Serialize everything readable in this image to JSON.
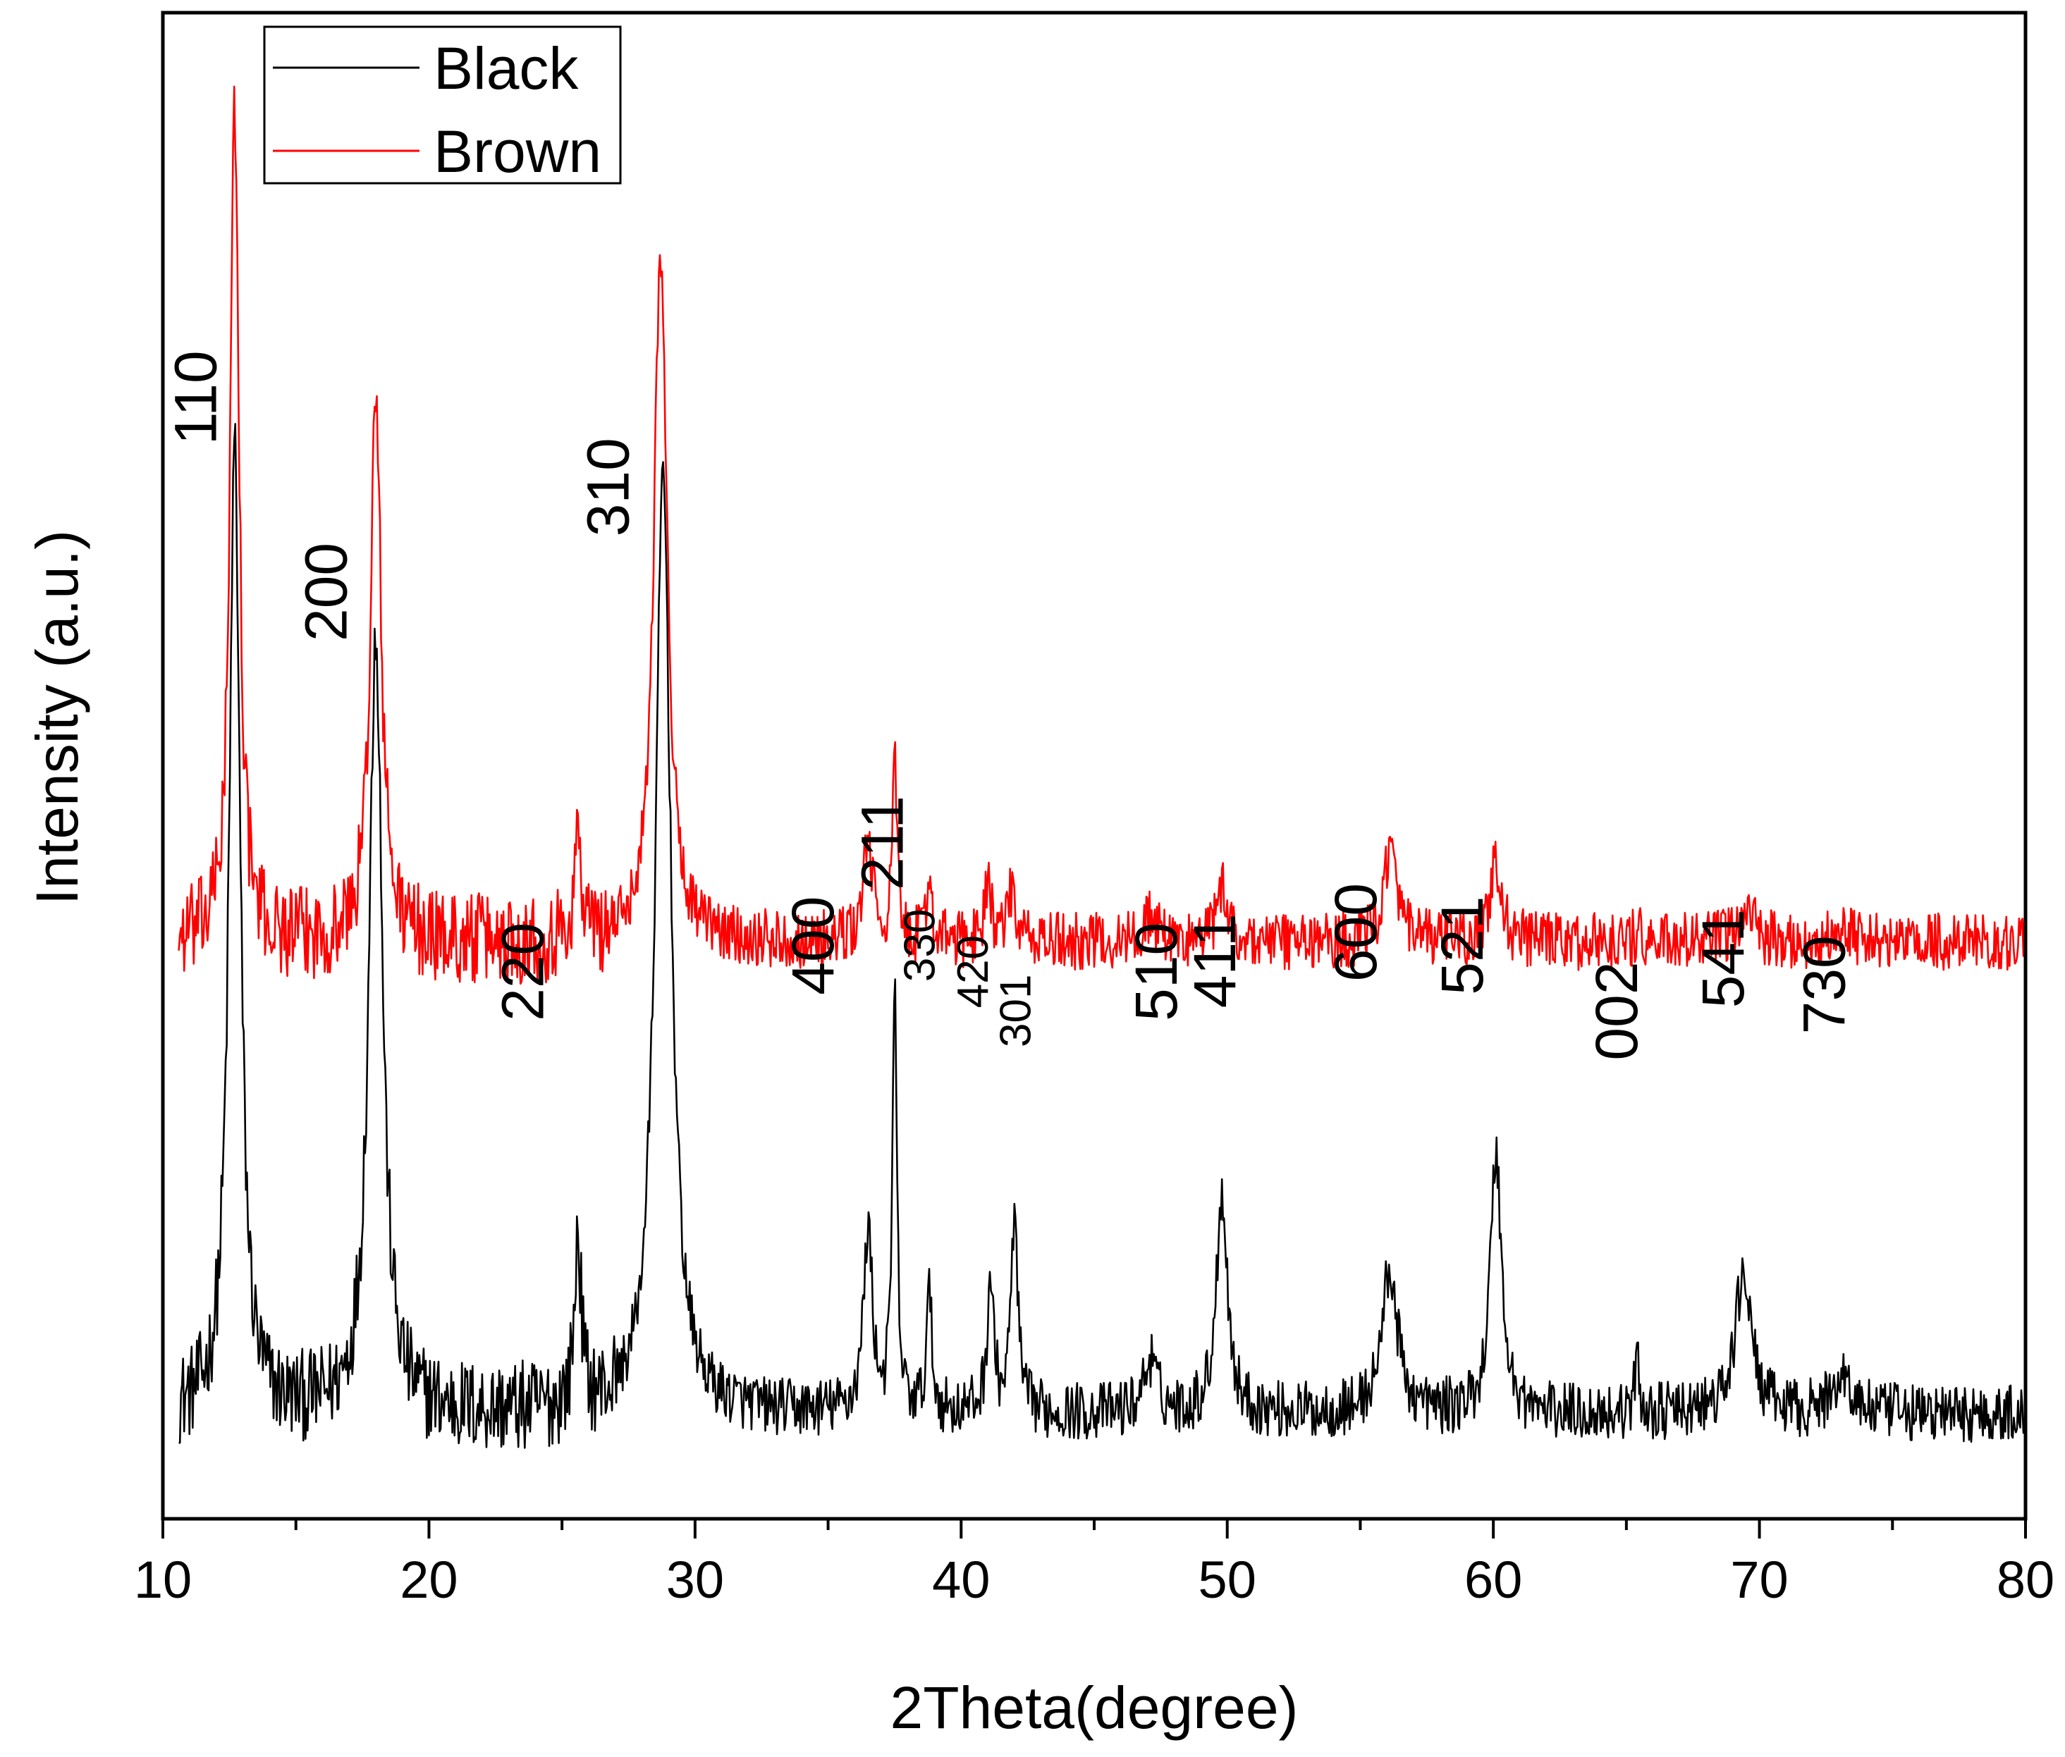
{
  "chart_data": {
    "type": "line",
    "title": "",
    "xlabel": "2Theta(degree)",
    "ylabel": "Intensity (a.u.)",
    "xlim": [
      10,
      80
    ],
    "ylim": [
      0,
      115
    ],
    "x_ticks": [
      10,
      20,
      30,
      40,
      50,
      60,
      70,
      80
    ],
    "x_minor_step": 5,
    "y_ticks_shown": false,
    "grid": false,
    "legend_position": "top-left",
    "series": [
      {
        "name": "Black",
        "color": "#000000",
        "baseline": 8,
        "noise": 2.2,
        "peaks": [
          {
            "x": 12.7,
            "height": 74,
            "width": 0.25
          },
          {
            "x": 18.0,
            "height": 60,
            "width": 0.3
          },
          {
            "x": 25.6,
            "height": 13,
            "width": 0.15
          },
          {
            "x": 28.8,
            "height": 72,
            "width": 0.35
          },
          {
            "x": 36.5,
            "height": 14,
            "width": 0.2
          },
          {
            "x": 37.5,
            "height": 32,
            "width": 0.1
          },
          {
            "x": 38.8,
            "height": 9,
            "width": 0.12
          },
          {
            "x": 41.1,
            "height": 10,
            "width": 0.15
          },
          {
            "x": 42.0,
            "height": 15,
            "width": 0.15
          },
          {
            "x": 47.1,
            "height": 4,
            "width": 0.3
          },
          {
            "x": 49.8,
            "height": 17,
            "width": 0.25
          },
          {
            "x": 56.1,
            "height": 11,
            "width": 0.35
          },
          {
            "x": 60.1,
            "height": 20,
            "width": 0.25
          },
          {
            "x": 65.4,
            "height": 4,
            "width": 0.1
          },
          {
            "x": 69.4,
            "height": 11,
            "width": 0.35
          },
          {
            "x": 73.1,
            "height": 3,
            "width": 0.4
          }
        ]
      },
      {
        "name": "Brown",
        "color": "#ff0000",
        "baseline": 44,
        "noise": 2.2,
        "peaks": [
          {
            "x": 12.7,
            "height": 64,
            "width": 0.2
          },
          {
            "x": 18.0,
            "height": 41,
            "width": 0.25
          },
          {
            "x": 25.6,
            "height": 8,
            "width": 0.15
          },
          {
            "x": 28.7,
            "height": 53,
            "width": 0.3
          },
          {
            "x": 36.5,
            "height": 8,
            "width": 0.2
          },
          {
            "x": 37.5,
            "height": 14,
            "width": 0.1
          },
          {
            "x": 38.8,
            "height": 5,
            "width": 0.12
          },
          {
            "x": 41.0,
            "height": 5,
            "width": 0.15
          },
          {
            "x": 41.9,
            "height": 4,
            "width": 0.15
          },
          {
            "x": 47.1,
            "height": 2,
            "width": 0.3
          },
          {
            "x": 49.8,
            "height": 4,
            "width": 0.25
          },
          {
            "x": 56.1,
            "height": 7,
            "width": 0.3
          },
          {
            "x": 60.1,
            "height": 6,
            "width": 0.25
          },
          {
            "x": 65.4,
            "height": 1,
            "width": 0.1
          },
          {
            "x": 69.5,
            "height": 3,
            "width": 0.3
          },
          {
            "x": 73.1,
            "height": 1,
            "width": 0.4
          }
        ]
      }
    ],
    "annotations": [
      {
        "text": "110",
        "x": 12.0,
        "y": 82,
        "size": "large"
      },
      {
        "text": "200",
        "x": 16.9,
        "y": 67,
        "size": "large"
      },
      {
        "text": "220",
        "x": 24.3,
        "y": 38,
        "size": "large"
      },
      {
        "text": "310",
        "x": 27.5,
        "y": 75,
        "size": "large"
      },
      {
        "text": "400",
        "x": 35.2,
        "y": 40,
        "size": "large"
      },
      {
        "text": "211",
        "x": 37.8,
        "y": 48,
        "size": "large"
      },
      {
        "text": "330",
        "x": 39.0,
        "y": 41,
        "size": "small"
      },
      {
        "text": "420",
        "x": 41.0,
        "y": 39,
        "size": "small"
      },
      {
        "text": "301",
        "x": 42.6,
        "y": 36,
        "size": "small"
      },
      {
        "text": "510",
        "x": 48.1,
        "y": 38,
        "size": "large"
      },
      {
        "text": "411",
        "x": 50.3,
        "y": 39,
        "size": "large"
      },
      {
        "text": "600",
        "x": 55.6,
        "y": 41,
        "size": "large"
      },
      {
        "text": "521",
        "x": 59.6,
        "y": 40,
        "size": "large"
      },
      {
        "text": "002",
        "x": 65.4,
        "y": 35,
        "size": "large"
      },
      {
        "text": "541",
        "x": 69.4,
        "y": 39,
        "size": "large"
      },
      {
        "text": "730",
        "x": 73.2,
        "y": 37,
        "size": "large"
      }
    ]
  }
}
